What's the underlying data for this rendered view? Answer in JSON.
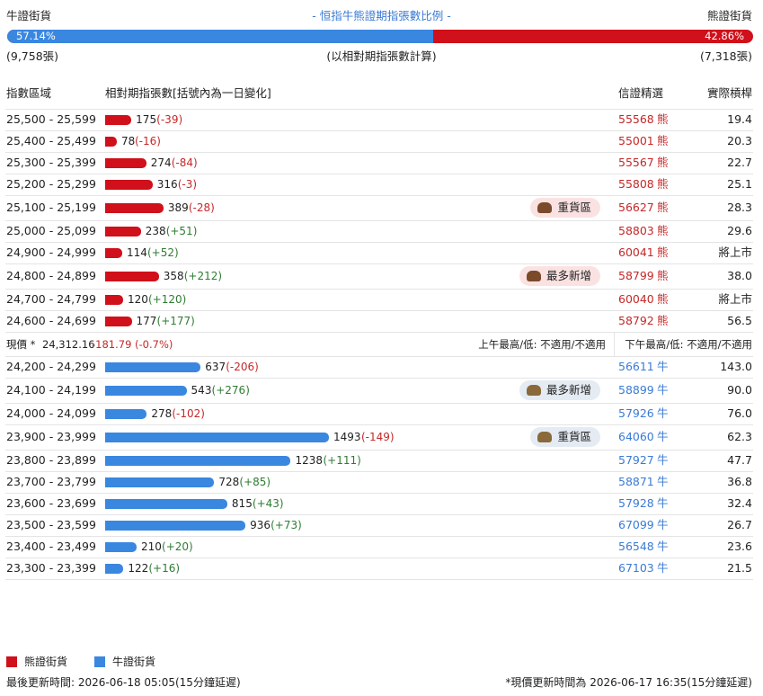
{
  "header": {
    "bull_label": "牛證街貨",
    "title": "- 恒指牛熊證期指張數比例 -",
    "bear_label": "熊證街貨",
    "bull_pct": {
      "value": 57.14,
      "label": "57.14%"
    },
    "bear_pct": {
      "value": 42.86,
      "label": "42.86%"
    },
    "bull_count": "(9,758張)",
    "note": "(以相對期指張數計算)",
    "bear_count": "(7,318張)"
  },
  "columns": [
    "指數區域",
    "相對期指張數[括號內為一日變化]",
    "信證精選",
    "實際槓桿"
  ],
  "bar_max": 1600,
  "bear_rows": [
    {
      "range": "25,500 - 25,599",
      "count": 175,
      "change": "(-39)",
      "code": "55568",
      "side": "熊",
      "leverage": "19.4"
    },
    {
      "range": "25,400 - 25,499",
      "count": 78,
      "change": "(-16)",
      "code": "55001",
      "side": "熊",
      "leverage": "20.3"
    },
    {
      "range": "25,300 - 25,399",
      "count": 274,
      "change": "(-84)",
      "code": "55567",
      "side": "熊",
      "leverage": "22.7"
    },
    {
      "range": "25,200 - 25,299",
      "count": 316,
      "change": "(-3)",
      "code": "55808",
      "side": "熊",
      "leverage": "25.1"
    },
    {
      "range": "25,100 - 25,199",
      "count": 389,
      "change": "(-28)",
      "code": "56627",
      "side": "熊",
      "leverage": "28.3",
      "badge": "重貨區"
    },
    {
      "range": "25,000 - 25,099",
      "count": 238,
      "change": "(+51)",
      "code": "58803",
      "side": "熊",
      "leverage": "29.6"
    },
    {
      "range": "24,900 - 24,999",
      "count": 114,
      "change": "(+52)",
      "code": "60041",
      "side": "熊",
      "leverage": "將上市"
    },
    {
      "range": "24,800 - 24,899",
      "count": 358,
      "change": "(+212)",
      "code": "58799",
      "side": "熊",
      "leverage": "38.0",
      "badge": "最多新增"
    },
    {
      "range": "24,700 - 24,799",
      "count": 120,
      "change": "(+120)",
      "code": "60040",
      "side": "熊",
      "leverage": "將上市"
    },
    {
      "range": "24,600 - 24,699",
      "count": 177,
      "change": "(+177)",
      "code": "58792",
      "side": "熊",
      "leverage": "56.5"
    }
  ],
  "current": {
    "label": "現價 *",
    "price": "24,312.16",
    "change": "-181.79 (-0.7%)",
    "am": "上午最高/低: 不適用/不適用",
    "pm": "下午最高/低: 不適用/不適用"
  },
  "bull_rows": [
    {
      "range": "24,200 - 24,299",
      "count": 637,
      "change": "(-206)",
      "code": "56611",
      "side": "牛",
      "leverage": "143.0"
    },
    {
      "range": "24,100 - 24,199",
      "count": 543,
      "change": "(+276)",
      "code": "58899",
      "side": "牛",
      "leverage": "90.0",
      "badge": "最多新增"
    },
    {
      "range": "24,000 - 24,099",
      "count": 278,
      "change": "(-102)",
      "code": "57926",
      "side": "牛",
      "leverage": "76.0"
    },
    {
      "range": "23,900 - 23,999",
      "count": 1493,
      "change": "(-149)",
      "code": "64060",
      "side": "牛",
      "leverage": "62.3",
      "badge": "重貨區"
    },
    {
      "range": "23,800 - 23,899",
      "count": 1238,
      "change": "(+111)",
      "code": "57927",
      "side": "牛",
      "leverage": "47.7"
    },
    {
      "range": "23,700 - 23,799",
      "count": 728,
      "change": "(+85)",
      "code": "58871",
      "side": "牛",
      "leverage": "36.8"
    },
    {
      "range": "23,600 - 23,699",
      "count": 815,
      "change": "(+43)",
      "code": "57928",
      "side": "牛",
      "leverage": "32.4"
    },
    {
      "range": "23,500 - 23,599",
      "count": 936,
      "change": "(+73)",
      "code": "67099",
      "side": "牛",
      "leverage": "26.7"
    },
    {
      "range": "23,400 - 23,499",
      "count": 210,
      "change": "(+20)",
      "code": "56548",
      "side": "牛",
      "leverage": "23.6"
    },
    {
      "range": "23,300 - 23,399",
      "count": 122,
      "change": "(+16)",
      "code": "67103",
      "side": "牛",
      "leverage": "21.5"
    }
  ],
  "legend": [
    "熊證街貨",
    "牛證街貨"
  ],
  "footer": {
    "updated": "最後更新時間: 2026-06-18 05:05(15分鐘延遲)",
    "price_note": "*現價更新時間為 2026-06-17 16:35(15分鐘延遲)"
  }
}
